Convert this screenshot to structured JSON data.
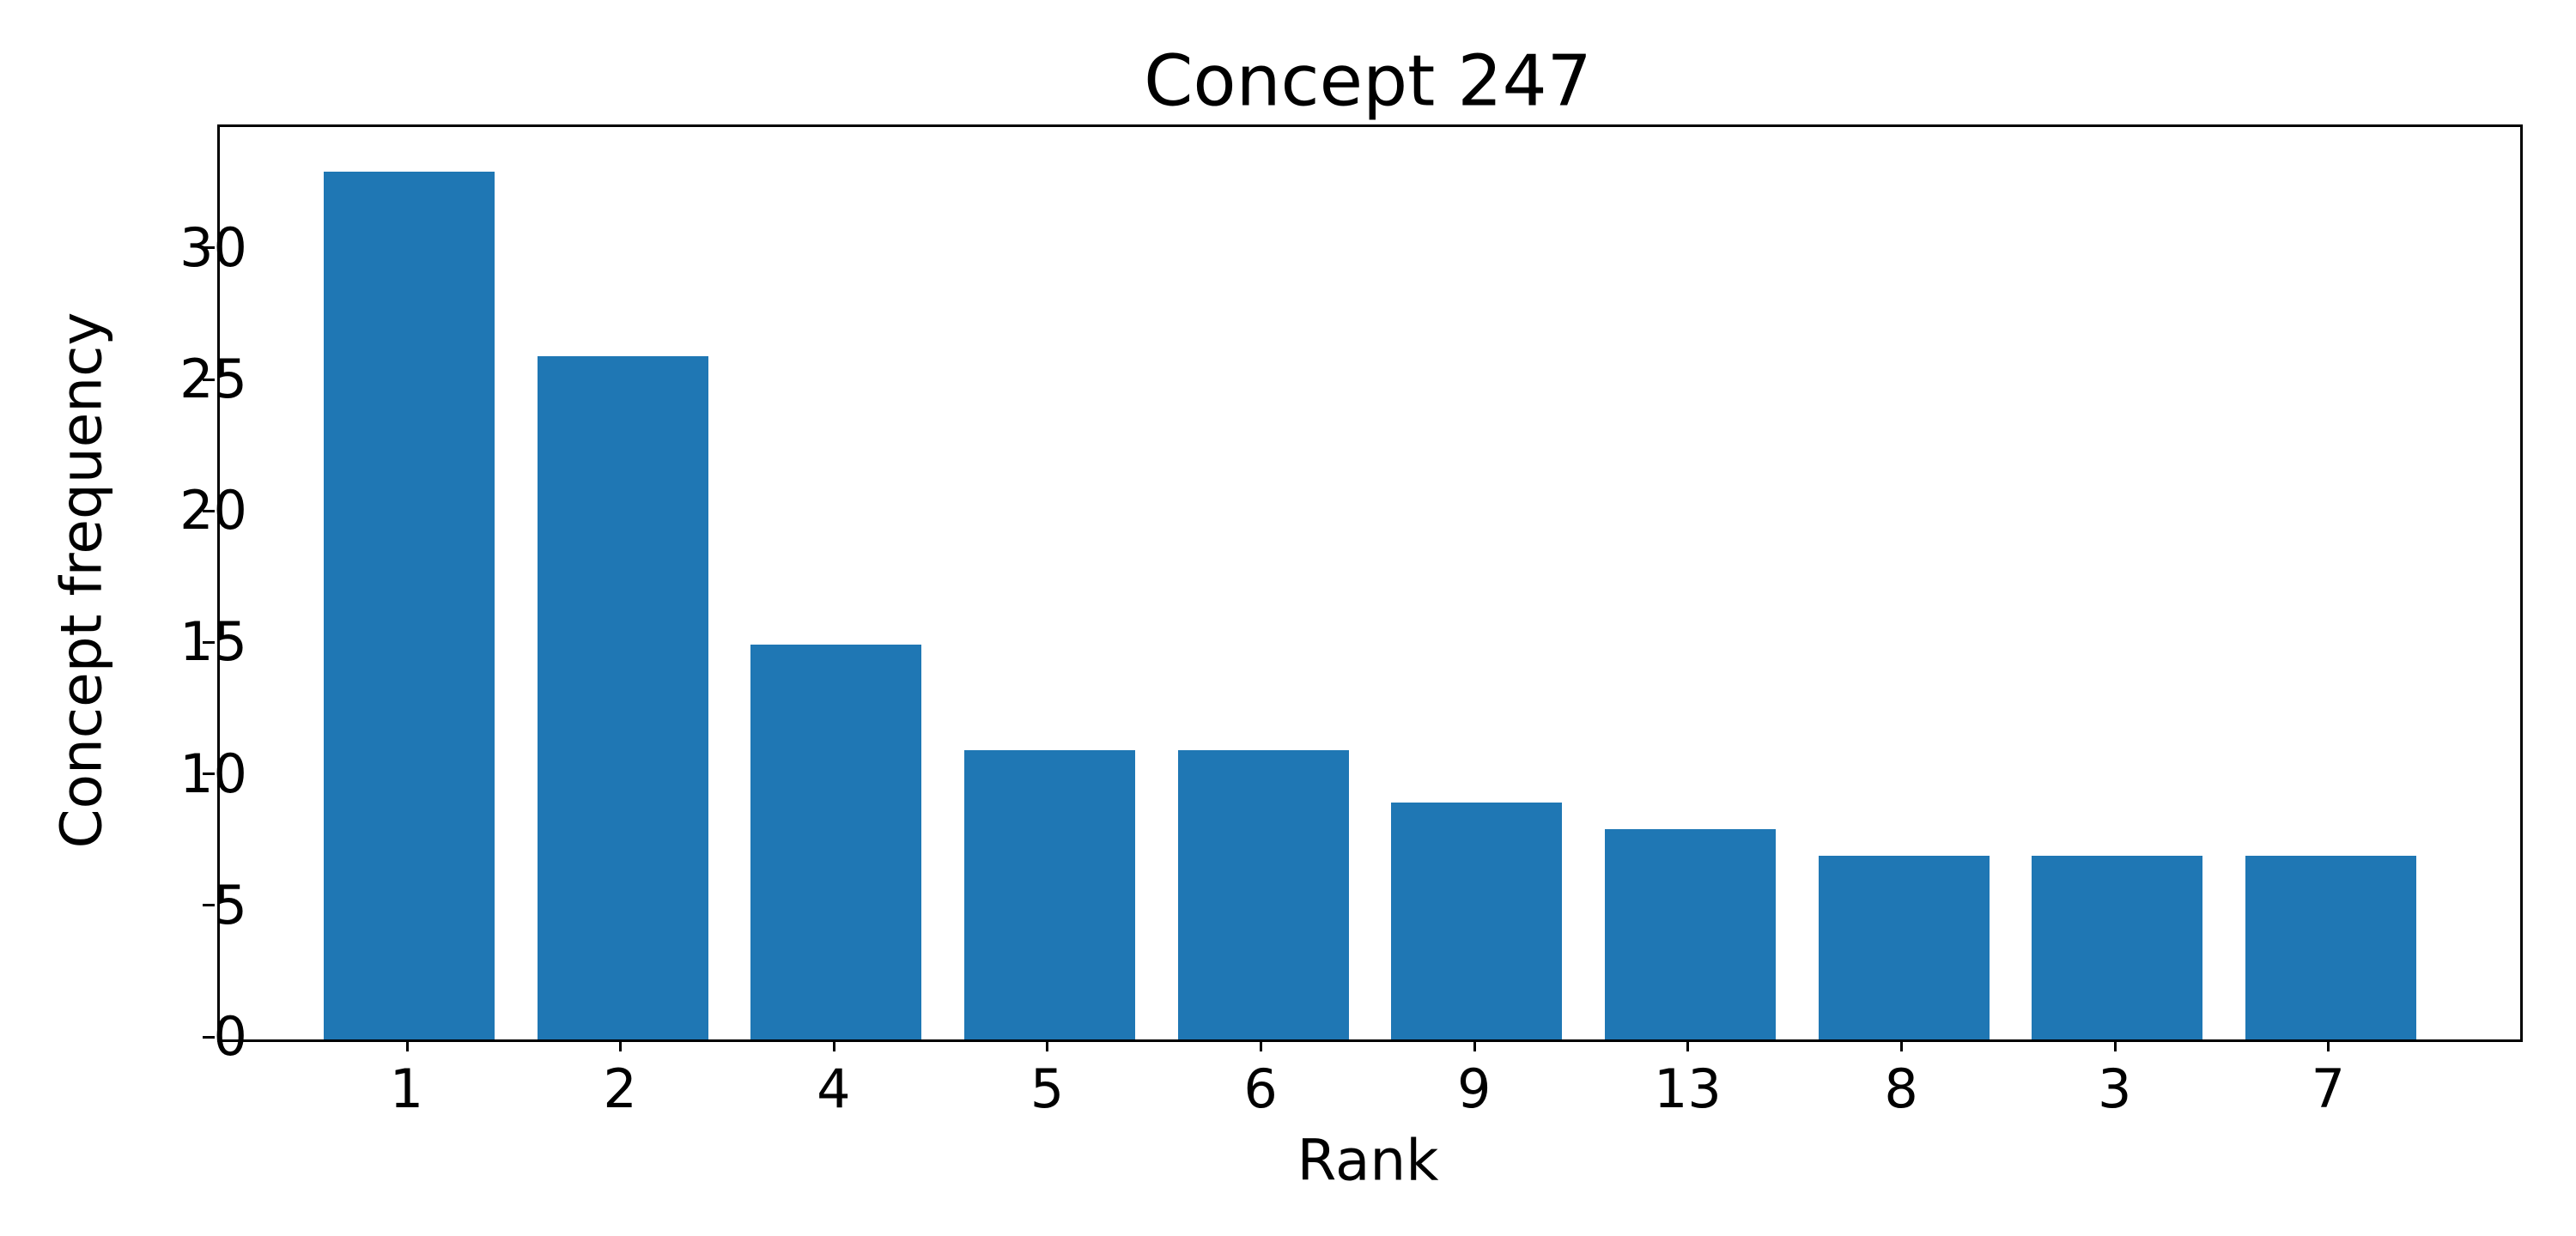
{
  "chart_data": {
    "type": "bar",
    "title": "Concept 247",
    "xlabel": "Rank",
    "ylabel": "Concept frequency",
    "categories": [
      "1",
      "2",
      "4",
      "5",
      "6",
      "9",
      "13",
      "8",
      "3",
      "7"
    ],
    "values": [
      33,
      26,
      15,
      11,
      11,
      9,
      8,
      7,
      7,
      7
    ],
    "yticks": [
      0,
      5,
      10,
      15,
      20,
      25,
      30
    ],
    "ylim": [
      0,
      34.7
    ],
    "bar_color": "#1f77b4",
    "axis_color": "#000000",
    "legend": {
      "visible": true,
      "entries": [],
      "position": "upper right"
    },
    "grid": false
  }
}
